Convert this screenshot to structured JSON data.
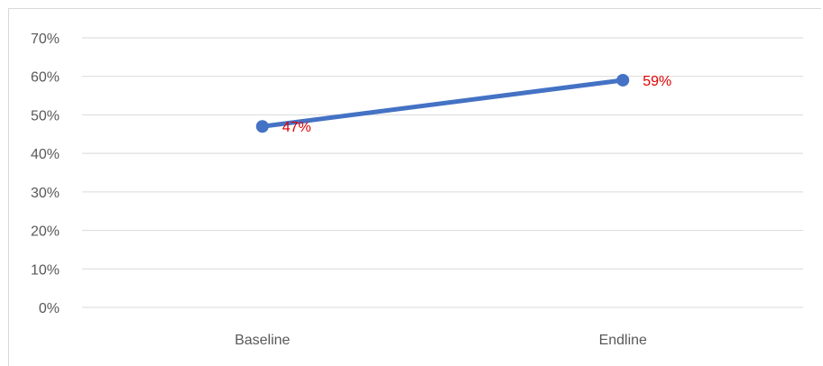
{
  "chart_data": {
    "type": "line",
    "categories": [
      "Baseline",
      "Endline"
    ],
    "series": [
      {
        "values": [
          0.47,
          0.59
        ],
        "data_labels": [
          "47%",
          "59%"
        ],
        "color": "#4472c4",
        "label_color": "#e00000"
      }
    ],
    "y_ticks": [
      "0%",
      "10%",
      "20%",
      "30%",
      "40%",
      "50%",
      "60%",
      "70%"
    ],
    "ylim": [
      0,
      0.7
    ],
    "grid": true,
    "legend": "none",
    "title": "",
    "xlabel": "",
    "ylabel": ""
  }
}
